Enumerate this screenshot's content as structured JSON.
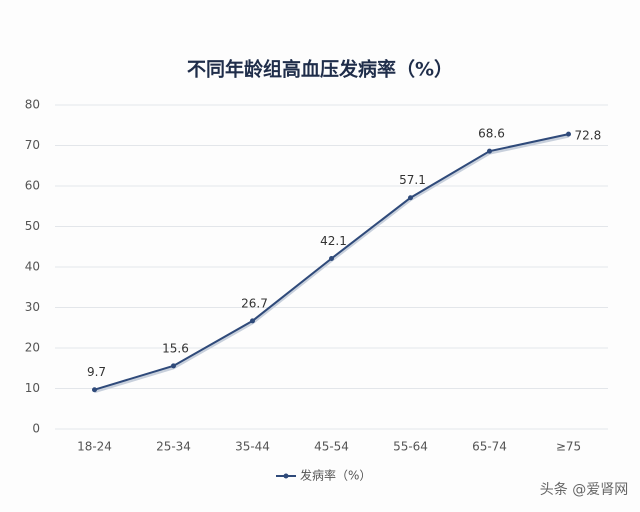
{
  "chart_data": {
    "type": "line",
    "title": "不同年龄组高血压发病率（%）",
    "categories": [
      "18-24",
      "25-34",
      "35-44",
      "45-54",
      "55-64",
      "65-74",
      "≥75"
    ],
    "series": [
      {
        "name": "发病率（%）",
        "color": "#2f4a7a",
        "values": [
          9.7,
          15.6,
          26.7,
          42.1,
          57.1,
          68.6,
          72.8
        ]
      }
    ],
    "ylim": [
      0,
      80
    ],
    "yticks": [
      0,
      10,
      20,
      30,
      40,
      50,
      60,
      70,
      80
    ],
    "grid": true,
    "legend": "bottom"
  },
  "watermark": "头条 @爱肾网"
}
